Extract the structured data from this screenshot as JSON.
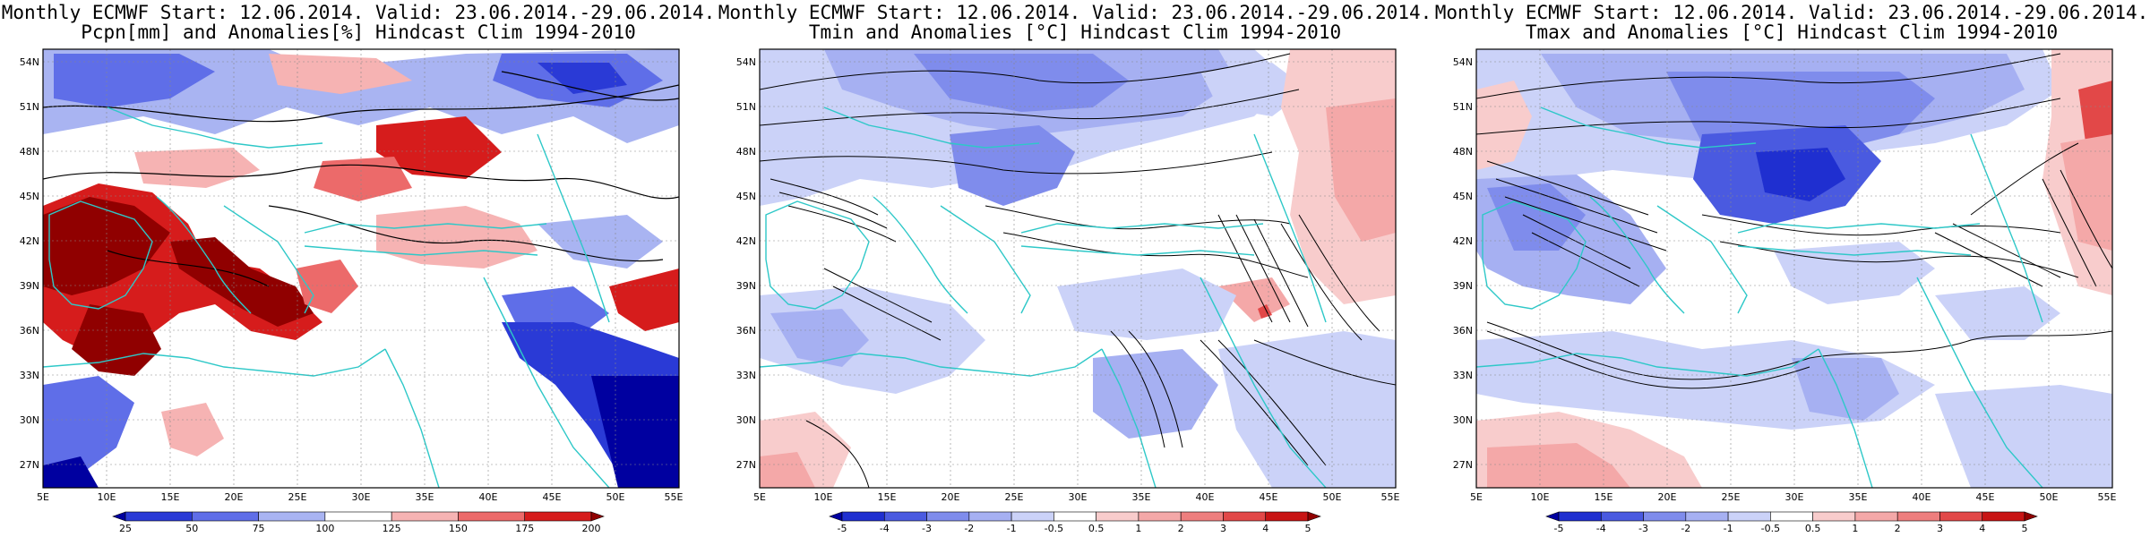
{
  "maps": [
    {
      "id": "pcpn",
      "title_line1": "Monthly ECMWF Start: 12.06.2014. Valid: 23.06.2014.-29.06.2014.",
      "title_line2": "Pcpn[mm] and Anomalies[%] Hindcast Clim 1994-2010",
      "colorbar_labels": [
        "25",
        "50",
        "75",
        "100",
        "125",
        "150",
        "175",
        "200"
      ],
      "colorbar_colors": [
        "#0000a0",
        "#2a3ad6",
        "#5f6ee8",
        "#a9b4f2",
        "#ffffff",
        "#f6b3b3",
        "#ec6a6a",
        "#d61c1c",
        "#900000"
      ]
    },
    {
      "id": "tmin",
      "title_line1": "Monthly ECMWF Start: 12.06.2014. Valid: 23.06.2014.-29.06.2014.",
      "title_line2": "Tmin and Anomalies [°C] Hindcast Clim 1994-2010",
      "colorbar_labels": [
        "-5",
        "-4",
        "-3",
        "-2",
        "-1",
        "-0.5",
        "0.5",
        "1",
        "2",
        "3",
        "4",
        "5"
      ],
      "colorbar_colors": [
        "#0000a0",
        "#1f2fd0",
        "#4a5ae0",
        "#7f8cec",
        "#a6b0f2",
        "#cbd2f8",
        "#ffffff",
        "#f8cccc",
        "#f4a8a8",
        "#ee7e7e",
        "#e24848",
        "#c81414",
        "#900000"
      ]
    },
    {
      "id": "tmax",
      "title_line1": "Monthly ECMWF Start: 12.06.2014. Valid: 23.06.2014.-29.06.2014.",
      "title_line2": "Tmax and Anomalies [°C] Hindcast Clim 1994-2010",
      "colorbar_labels": [
        "-5",
        "-4",
        "-3",
        "-2",
        "-1",
        "-0.5",
        "0.5",
        "1",
        "2",
        "3",
        "4",
        "5"
      ],
      "colorbar_colors": [
        "#0000a0",
        "#1f2fd0",
        "#4a5ae0",
        "#7f8cec",
        "#a6b0f2",
        "#cbd2f8",
        "#ffffff",
        "#f8cccc",
        "#f4a8a8",
        "#ee7e7e",
        "#e24848",
        "#c81414",
        "#900000"
      ]
    }
  ],
  "lat_labels": [
    "54N",
    "51N",
    "48N",
    "45N",
    "42N",
    "39N",
    "36N",
    "33N",
    "30N",
    "27N"
  ],
  "lon_labels": [
    "5E",
    "10E",
    "15E",
    "20E",
    "25E",
    "30E",
    "35E",
    "40E",
    "45E",
    "50E",
    "55E"
  ],
  "colors": {
    "coast": "#2ec8c8",
    "contour": "#000000",
    "grid": "#888888"
  }
}
